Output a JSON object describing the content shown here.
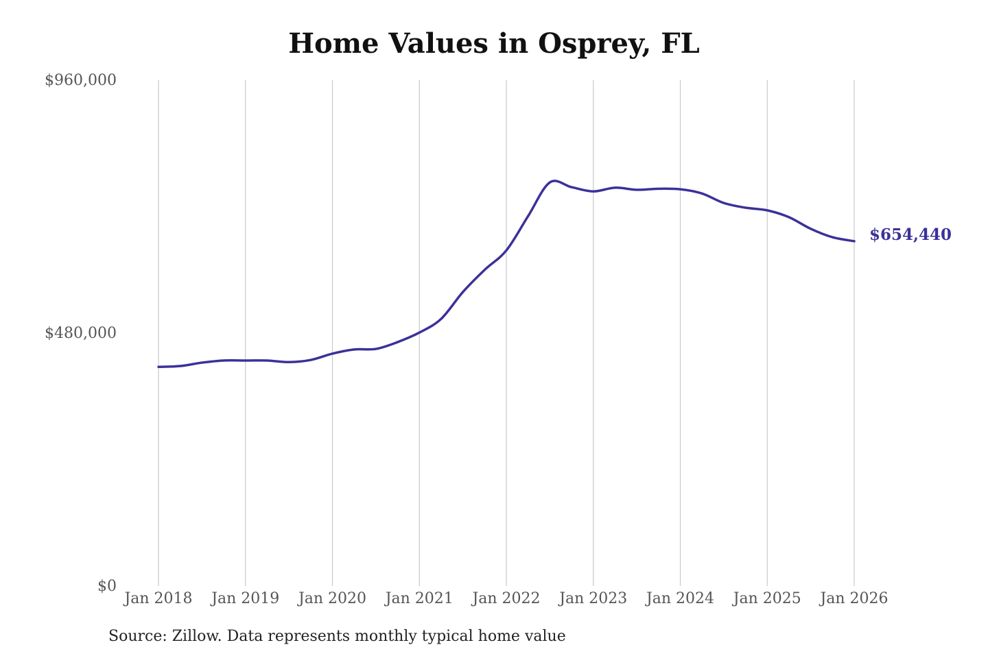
{
  "chart_data": {
    "type": "line",
    "title": "Home Values in Osprey, FL",
    "source": "Source: Zillow. Data represents monthly typical home value",
    "xlabel": "",
    "ylabel": "",
    "ylim": [
      0,
      960000
    ],
    "y_ticks": [
      0,
      480000,
      960000
    ],
    "y_tick_labels": [
      "$0",
      "$480,000",
      "$960,000"
    ],
    "x_ticks": [
      "2018-01",
      "2019-01",
      "2020-01",
      "2021-01",
      "2022-01",
      "2023-01",
      "2024-01",
      "2025-01",
      "2026-01"
    ],
    "x_tick_labels": [
      "Jan 2018",
      "Jan 2019",
      "Jan 2020",
      "Jan 2021",
      "Jan 2022",
      "Jan 2023",
      "Jan 2024",
      "Jan 2025",
      "Jan 2026"
    ],
    "grid": "vertical",
    "line_color": "#3b3199",
    "end_label": "$654,440",
    "x": [
      "2018-01",
      "2018-04",
      "2018-07",
      "2018-10",
      "2019-01",
      "2019-04",
      "2019-07",
      "2019-10",
      "2020-01",
      "2020-04",
      "2020-07",
      "2020-10",
      "2021-01",
      "2021-04",
      "2021-07",
      "2021-10",
      "2022-01",
      "2022-04",
      "2022-07",
      "2022-10",
      "2023-01",
      "2023-04",
      "2023-07",
      "2023-10",
      "2024-01",
      "2024-04",
      "2024-07",
      "2024-10",
      "2025-01",
      "2025-04",
      "2025-07",
      "2025-10",
      "2026-01"
    ],
    "values": [
      416000,
      417500,
      424000,
      428000,
      428000,
      428000,
      425000,
      429000,
      441000,
      449000,
      450000,
      463000,
      481000,
      507000,
      558000,
      600000,
      637000,
      702000,
      766000,
      757000,
      749000,
      756000,
      752000,
      754000,
      753000,
      745000,
      727000,
      718000,
      713000,
      700000,
      678000,
      662000,
      654440
    ]
  }
}
